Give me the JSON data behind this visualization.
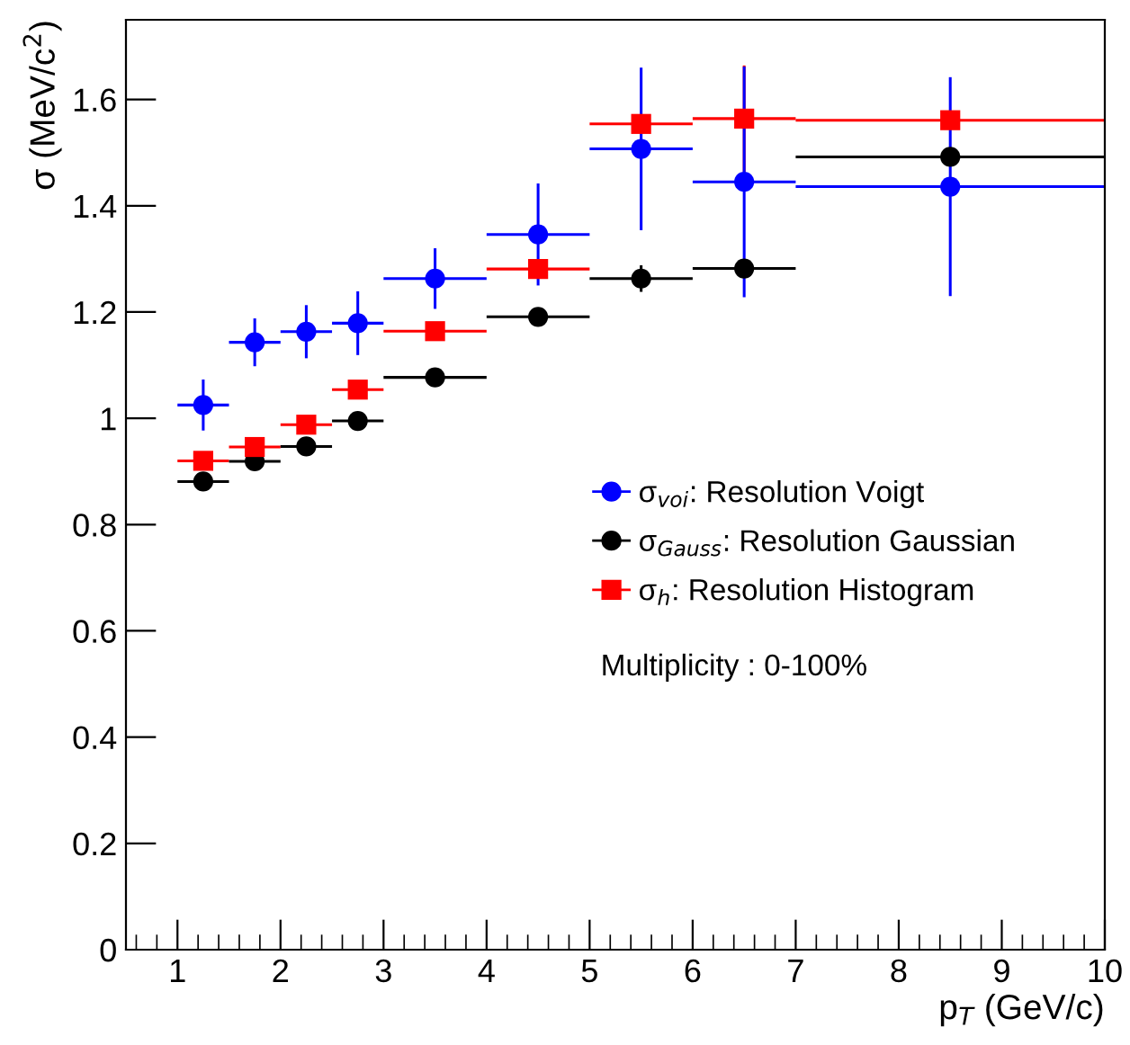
{
  "chart_data": {
    "type": "scatter",
    "xlabel": "p$_{T}$ (GeV/c)",
    "ylabel": "σ (MeV/c$^{2}$)",
    "xlim": [
      0.5,
      10
    ],
    "ylim": [
      0,
      1.75
    ],
    "xticks": [
      1,
      2,
      3,
      4,
      5,
      6,
      7,
      8,
      9,
      10
    ],
    "yticks": [
      0,
      {
        "value": 0.2,
        "label": "0.2"
      },
      {
        "value": 0.4,
        "label": "0.4"
      },
      {
        "value": 0.6,
        "label": "0.6"
      },
      {
        "value": 0.8,
        "label": "0.8"
      },
      1,
      {
        "value": 1.2,
        "label": "1.2"
      },
      {
        "value": 1.4,
        "label": "1.4"
      },
      {
        "value": 1.6,
        "label": "1.6"
      }
    ],
    "x": [
      1.25,
      1.75,
      2.25,
      2.75,
      3.5,
      4.5,
      5.5,
      6.5,
      8.5
    ],
    "grid": false,
    "legend": "right",
    "line_style": "none",
    "series": [
      {
        "name": "σ$_{voi}$: Resolution Voigt",
        "color": "#0000ff",
        "marker": "circle",
        "xerrors": [
          0.25,
          0.25,
          0.25,
          0.25,
          0.5,
          0.5,
          0.5,
          0.5,
          1.5
        ],
        "values": [
          1.025,
          1.143,
          1.163,
          1.179,
          1.263,
          1.346,
          1.507,
          1.445,
          1.436
        ],
        "errors": [
          0.048,
          0.045,
          0.05,
          0.06,
          0.057,
          0.096,
          0.153,
          0.217,
          0.206
        ]
      },
      {
        "name": "σ$_{Gauss}$: Resolution Gaussian",
        "color": "#000000",
        "marker": "circle",
        "xerrors": [
          0.25,
          0.25,
          0.25,
          0.25,
          0.5,
          0.5,
          0.5,
          0.5,
          1.5
        ],
        "values": [
          0.881,
          0.919,
          0.947,
          0.995,
          1.077,
          1.191,
          1.263,
          1.282,
          1.492
        ],
        "errors": [
          null,
          null,
          null,
          null,
          null,
          null,
          0.025,
          null,
          null
        ]
      },
      {
        "name": "σ$_{h}$: Resolution Histogram",
        "color": "#ff0000",
        "marker": "square",
        "xerrors": [
          0.25,
          0.25,
          0.25,
          0.25,
          0.5,
          0.5,
          0.5,
          0.5,
          1.5
        ],
        "values": [
          0.92,
          0.946,
          0.988,
          1.054,
          1.164,
          1.281,
          1.554,
          1.564,
          1.561
        ],
        "errors": [
          null,
          null,
          null,
          null,
          null,
          null,
          null,
          0.1,
          null
        ]
      }
    ],
    "annotations": [
      "Multiplicity : 0-100%"
    ]
  }
}
